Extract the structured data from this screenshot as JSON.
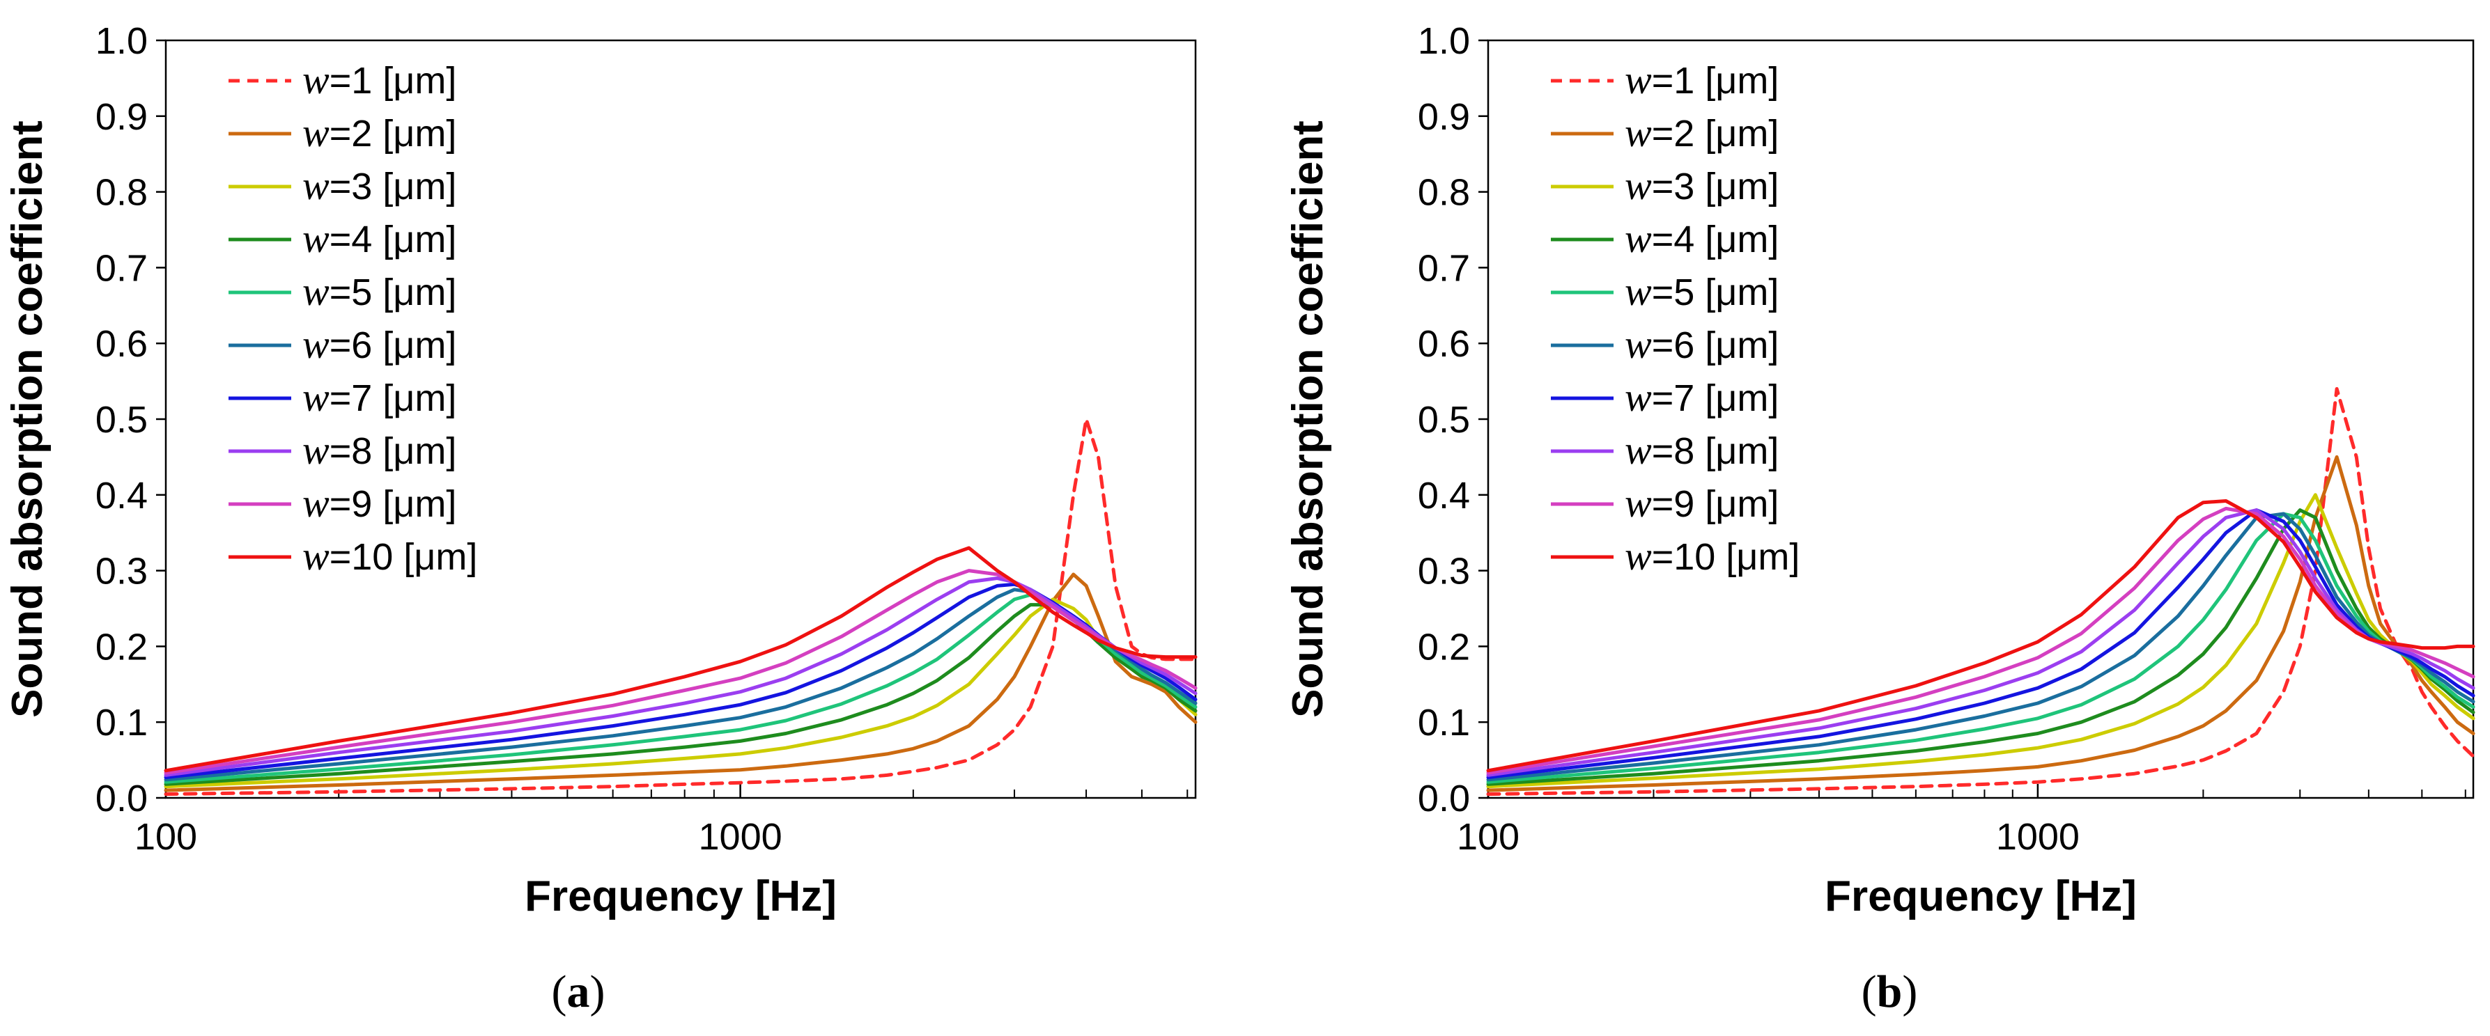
{
  "chart_data": [
    {
      "type": "line",
      "panel": "a",
      "panel_label": {
        "open": "(",
        "letter": "a",
        "close": ")"
      },
      "xlabel": "Frequency [Hz]",
      "ylabel": "Sound absorption coefficient",
      "xscale": "log",
      "xlim": [
        100,
        6200
      ],
      "ylim": [
        0,
        1.0
      ],
      "x_ticks": [
        100,
        1000
      ],
      "x_tick_labels": [
        "100",
        "1000"
      ],
      "y_ticks": [
        0.0,
        0.1,
        0.2,
        0.3,
        0.4,
        0.5,
        0.6,
        0.7,
        0.8,
        0.9,
        1.0
      ],
      "y_tick_labels": [
        "0.0",
        "0.1",
        "0.2",
        "0.3",
        "0.4",
        "0.5",
        "0.6",
        "0.7",
        "0.8",
        "0.9",
        "1.0"
      ],
      "grid": false,
      "legend_location": "top-left",
      "x": [
        100,
        200,
        400,
        600,
        800,
        1000,
        1200,
        1500,
        1800,
        2000,
        2200,
        2500,
        2800,
        3000,
        3200,
        3500,
        3800,
        4000,
        4200,
        4500,
        4800,
        5000,
        5200,
        5500,
        5800,
        6200
      ],
      "series": [
        {
          "name": "w=1 [μm]",
          "legend": {
            "var": "w",
            "eq": "=1",
            "unit": " [μm]"
          },
          "color": "#ff2a2a",
          "dashed": true,
          "values": [
            0.005,
            0.008,
            0.012,
            0.015,
            0.018,
            0.02,
            0.022,
            0.025,
            0.03,
            0.035,
            0.04,
            0.05,
            0.07,
            0.09,
            0.12,
            0.2,
            0.4,
            0.5,
            0.45,
            0.28,
            0.2,
            0.19,
            0.185,
            0.183,
            0.183,
            0.183
          ]
        },
        {
          "name": "w=2 [μm]",
          "legend": {
            "var": "w",
            "eq": "=2",
            "unit": " [μm]"
          },
          "color": "#cc6a10",
          "dashed": false,
          "values": [
            0.01,
            0.017,
            0.025,
            0.03,
            0.034,
            0.037,
            0.042,
            0.05,
            0.058,
            0.065,
            0.075,
            0.095,
            0.13,
            0.16,
            0.2,
            0.26,
            0.295,
            0.28,
            0.24,
            0.18,
            0.16,
            0.155,
            0.15,
            0.14,
            0.12,
            0.1
          ]
        },
        {
          "name": "w=3 [μm]",
          "legend": {
            "var": "w",
            "eq": "=3",
            "unit": " [μm]"
          },
          "color": "#cccc00",
          "dashed": false,
          "values": [
            0.015,
            0.025,
            0.037,
            0.045,
            0.052,
            0.058,
            0.066,
            0.08,
            0.095,
            0.107,
            0.122,
            0.15,
            0.19,
            0.215,
            0.24,
            0.262,
            0.25,
            0.235,
            0.21,
            0.185,
            0.17,
            0.16,
            0.155,
            0.145,
            0.13,
            0.11
          ]
        },
        {
          "name": "w=4 [μm]",
          "legend": {
            "var": "w",
            "eq": "=4",
            "unit": " [μm]"
          },
          "color": "#1e8c1e",
          "dashed": false,
          "values": [
            0.018,
            0.032,
            0.048,
            0.058,
            0.067,
            0.075,
            0.085,
            0.103,
            0.123,
            0.138,
            0.155,
            0.185,
            0.22,
            0.24,
            0.255,
            0.255,
            0.235,
            0.22,
            0.205,
            0.185,
            0.17,
            0.16,
            0.155,
            0.145,
            0.13,
            0.115
          ]
        },
        {
          "name": "w=5 [μm]",
          "legend": {
            "var": "w",
            "eq": "=5",
            "unit": " [μm]"
          },
          "color": "#1fc47a",
          "dashed": false,
          "values": [
            0.021,
            0.038,
            0.057,
            0.07,
            0.081,
            0.09,
            0.102,
            0.124,
            0.148,
            0.165,
            0.183,
            0.215,
            0.245,
            0.262,
            0.268,
            0.258,
            0.238,
            0.225,
            0.21,
            0.19,
            0.175,
            0.165,
            0.158,
            0.148,
            0.135,
            0.12
          ]
        },
        {
          "name": "w=6 [μm]",
          "legend": {
            "var": "w",
            "eq": "=6",
            "unit": " [μm]"
          },
          "color": "#1a6e9e",
          "dashed": false,
          "values": [
            0.024,
            0.045,
            0.067,
            0.082,
            0.095,
            0.106,
            0.12,
            0.145,
            0.172,
            0.19,
            0.21,
            0.24,
            0.265,
            0.275,
            0.272,
            0.258,
            0.24,
            0.228,
            0.215,
            0.195,
            0.18,
            0.17,
            0.162,
            0.152,
            0.14,
            0.125
          ]
        },
        {
          "name": "w=7 [μm]",
          "legend": {
            "var": "w",
            "eq": "=7",
            "unit": " [μm]"
          },
          "color": "#1414e0",
          "dashed": false,
          "values": [
            0.027,
            0.052,
            0.077,
            0.095,
            0.11,
            0.123,
            0.139,
            0.168,
            0.198,
            0.218,
            0.238,
            0.265,
            0.28,
            0.282,
            0.275,
            0.258,
            0.24,
            0.228,
            0.215,
            0.198,
            0.183,
            0.175,
            0.168,
            0.158,
            0.146,
            0.13
          ]
        },
        {
          "name": "w=8 [μm]",
          "legend": {
            "var": "w",
            "eq": "=8",
            "unit": " [μm]"
          },
          "color": "#9b3ef0",
          "dashed": false,
          "values": [
            0.03,
            0.06,
            0.088,
            0.108,
            0.125,
            0.14,
            0.158,
            0.19,
            0.222,
            0.243,
            0.262,
            0.285,
            0.29,
            0.285,
            0.275,
            0.256,
            0.238,
            0.226,
            0.214,
            0.198,
            0.186,
            0.178,
            0.172,
            0.163,
            0.152,
            0.138
          ]
        },
        {
          "name": "w=9 [μm]",
          "legend": {
            "var": "w",
            "eq": "=9",
            "unit": " [μm]"
          },
          "color": "#d43fc0",
          "dashed": false,
          "values": [
            0.033,
            0.067,
            0.1,
            0.122,
            0.142,
            0.158,
            0.178,
            0.213,
            0.248,
            0.268,
            0.285,
            0.3,
            0.295,
            0.285,
            0.272,
            0.252,
            0.234,
            0.223,
            0.212,
            0.198,
            0.188,
            0.182,
            0.176,
            0.168,
            0.158,
            0.145
          ]
        },
        {
          "name": "w=10 [μm]",
          "legend": {
            "var": "w",
            "eq": "=10",
            "unit": " [μm]"
          },
          "color": "#ee1111",
          "dashed": false,
          "values": [
            0.036,
            0.075,
            0.112,
            0.137,
            0.16,
            0.18,
            0.202,
            0.24,
            0.278,
            0.298,
            0.315,
            0.33,
            0.3,
            0.285,
            0.268,
            0.245,
            0.228,
            0.218,
            0.208,
            0.198,
            0.192,
            0.188,
            0.187,
            0.186,
            0.186,
            0.186
          ]
        }
      ]
    },
    {
      "type": "line",
      "panel": "b",
      "panel_label": {
        "open": "(",
        "letter": "b",
        "close": ")"
      },
      "xlabel": "Frequency [Hz]",
      "ylabel": "Sound absorption coefficient",
      "xscale": "log",
      "xlim": [
        100,
        6200
      ],
      "ylim": [
        0,
        1.0
      ],
      "x_ticks": [
        100,
        1000
      ],
      "x_tick_labels": [
        "100",
        "1000"
      ],
      "y_ticks": [
        0.0,
        0.1,
        0.2,
        0.3,
        0.4,
        0.5,
        0.6,
        0.7,
        0.8,
        0.9,
        1.0
      ],
      "y_tick_labels": [
        "0.0",
        "0.1",
        "0.2",
        "0.3",
        "0.4",
        "0.5",
        "0.6",
        "0.7",
        "0.8",
        "0.9",
        "1.0"
      ],
      "grid": false,
      "legend_location": "top-left",
      "x": [
        100,
        200,
        400,
        600,
        800,
        1000,
        1200,
        1500,
        1800,
        2000,
        2200,
        2500,
        2800,
        3000,
        3200,
        3500,
        3800,
        4000,
        4200,
        4500,
        4800,
        5000,
        5200,
        5500,
        5800,
        6200
      ],
      "series": [
        {
          "name": "w=1 [μm]",
          "legend": {
            "var": "w",
            "eq": "=1",
            "unit": " [μm]"
          },
          "color": "#ff2a2a",
          "dashed": true,
          "values": [
            0.005,
            0.008,
            0.012,
            0.015,
            0.018,
            0.021,
            0.025,
            0.032,
            0.042,
            0.05,
            0.062,
            0.085,
            0.14,
            0.2,
            0.3,
            0.54,
            0.45,
            0.33,
            0.25,
            0.2,
            0.17,
            0.14,
            0.12,
            0.095,
            0.075,
            0.055
          ]
        },
        {
          "name": "w=2 [μm]",
          "legend": {
            "var": "w",
            "eq": "=2",
            "unit": " [μm]"
          },
          "color": "#cc6a10",
          "dashed": false,
          "values": [
            0.01,
            0.017,
            0.025,
            0.031,
            0.036,
            0.041,
            0.049,
            0.063,
            0.081,
            0.095,
            0.115,
            0.155,
            0.22,
            0.285,
            0.37,
            0.45,
            0.36,
            0.28,
            0.23,
            0.2,
            0.175,
            0.155,
            0.14,
            0.12,
            0.1,
            0.085
          ]
        },
        {
          "name": "w=3 [μm]",
          "legend": {
            "var": "w",
            "eq": "=3",
            "unit": " [μm]"
          },
          "color": "#cccc00",
          "dashed": false,
          "values": [
            0.015,
            0.026,
            0.038,
            0.048,
            0.057,
            0.066,
            0.077,
            0.098,
            0.124,
            0.146,
            0.175,
            0.23,
            0.31,
            0.365,
            0.4,
            0.33,
            0.27,
            0.235,
            0.215,
            0.195,
            0.18,
            0.165,
            0.15,
            0.135,
            0.12,
            0.105
          ]
        },
        {
          "name": "w=4 [μm]",
          "legend": {
            "var": "w",
            "eq": "=4",
            "unit": " [μm]"
          },
          "color": "#1e8c1e",
          "dashed": false,
          "values": [
            0.018,
            0.032,
            0.049,
            0.062,
            0.074,
            0.085,
            0.1,
            0.127,
            0.162,
            0.19,
            0.225,
            0.29,
            0.355,
            0.38,
            0.37,
            0.3,
            0.25,
            0.225,
            0.21,
            0.195,
            0.182,
            0.17,
            0.157,
            0.143,
            0.128,
            0.113
          ]
        },
        {
          "name": "w=5 [μm]",
          "legend": {
            "var": "w",
            "eq": "=5",
            "unit": " [μm]"
          },
          "color": "#1fc47a",
          "dashed": false,
          "values": [
            0.021,
            0.039,
            0.06,
            0.076,
            0.091,
            0.105,
            0.123,
            0.157,
            0.2,
            0.235,
            0.275,
            0.34,
            0.375,
            0.37,
            0.34,
            0.28,
            0.24,
            0.22,
            0.207,
            0.194,
            0.183,
            0.172,
            0.16,
            0.147,
            0.133,
            0.12
          ]
        },
        {
          "name": "w=6 [μm]",
          "legend": {
            "var": "w",
            "eq": "=6",
            "unit": " [μm]"
          },
          "color": "#1a6e9e",
          "dashed": false,
          "values": [
            0.024,
            0.046,
            0.07,
            0.09,
            0.108,
            0.125,
            0.147,
            0.188,
            0.24,
            0.28,
            0.32,
            0.37,
            0.375,
            0.355,
            0.32,
            0.265,
            0.232,
            0.215,
            0.205,
            0.194,
            0.184,
            0.175,
            0.165,
            0.153,
            0.14,
            0.127
          ]
        },
        {
          "name": "w=7 [μm]",
          "legend": {
            "var": "w",
            "eq": "=7",
            "unit": " [μm]"
          },
          "color": "#1414e0",
          "dashed": false,
          "values": [
            0.027,
            0.053,
            0.081,
            0.104,
            0.125,
            0.145,
            0.17,
            0.218,
            0.278,
            0.315,
            0.35,
            0.38,
            0.365,
            0.34,
            0.305,
            0.255,
            0.226,
            0.212,
            0.204,
            0.195,
            0.186,
            0.178,
            0.17,
            0.16,
            0.148,
            0.135
          ]
        },
        {
          "name": "w=8 [μm]",
          "legend": {
            "var": "w",
            "eq": "=8",
            "unit": " [μm]"
          },
          "color": "#9b3ef0",
          "dashed": false,
          "values": [
            0.03,
            0.06,
            0.092,
            0.118,
            0.142,
            0.165,
            0.193,
            0.248,
            0.31,
            0.345,
            0.37,
            0.38,
            0.355,
            0.325,
            0.29,
            0.248,
            0.222,
            0.21,
            0.204,
            0.197,
            0.19,
            0.184,
            0.177,
            0.168,
            0.157,
            0.145
          ]
        },
        {
          "name": "w=9 [μm]",
          "legend": {
            "var": "w",
            "eq": "=9",
            "unit": " [μm]"
          },
          "color": "#d43fc0",
          "dashed": false,
          "values": [
            0.033,
            0.068,
            0.103,
            0.133,
            0.16,
            0.185,
            0.217,
            0.277,
            0.34,
            0.368,
            0.382,
            0.375,
            0.345,
            0.315,
            0.28,
            0.243,
            0.22,
            0.21,
            0.205,
            0.2,
            0.195,
            0.19,
            0.185,
            0.178,
            0.17,
            0.16
          ]
        },
        {
          "name": "w=10 [μm]",
          "legend": {
            "var": "w",
            "eq": "=10",
            "unit": " [μm]"
          },
          "color": "#ee1111",
          "dashed": false,
          "values": [
            0.036,
            0.075,
            0.115,
            0.148,
            0.178,
            0.206,
            0.242,
            0.305,
            0.37,
            0.39,
            0.392,
            0.37,
            0.338,
            0.305,
            0.272,
            0.238,
            0.218,
            0.21,
            0.206,
            0.203,
            0.2,
            0.198,
            0.198,
            0.198,
            0.2,
            0.2
          ]
        }
      ]
    }
  ]
}
